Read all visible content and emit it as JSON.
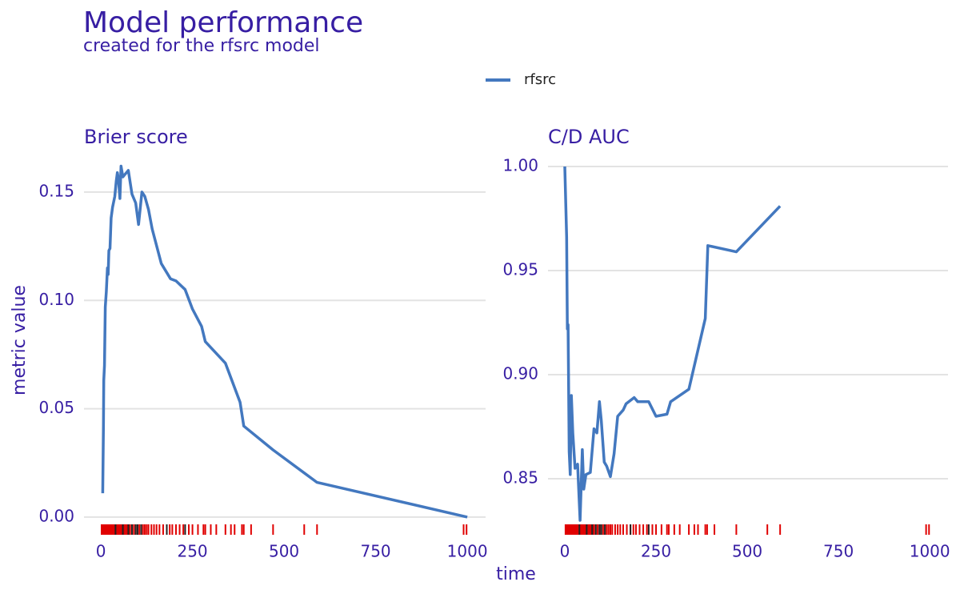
{
  "title": "Model performance",
  "subtitle": "created for the rfsrc model",
  "ylabel": "metric value",
  "xlabel": "time",
  "rug": {
    "events": [
      2,
      5,
      8,
      10,
      12,
      15,
      18,
      20,
      22,
      25,
      28,
      30,
      33,
      36,
      40,
      43,
      46,
      50,
      53,
      56,
      60,
      64,
      68,
      72,
      76,
      80,
      85,
      90,
      95,
      100,
      105,
      110,
      115,
      120,
      125,
      130,
      138,
      145,
      152,
      160,
      170,
      180,
      188,
      195,
      205,
      215,
      225,
      240,
      250,
      265,
      280,
      285,
      300,
      315,
      340,
      355,
      365,
      385,
      390,
      410,
      470,
      555,
      590,
      990,
      998
    ],
    "events_color": "#e00000",
    "censored": [
      40,
      60,
      75,
      85,
      95,
      100,
      110,
      180,
      230
    ],
    "censored_color": "#222222"
  },
  "chart_data": [
    {
      "type": "line",
      "title": "Brier score",
      "x": [
        5,
        7,
        8,
        10,
        12,
        15,
        18,
        20,
        22,
        25,
        28,
        32,
        38,
        42,
        45,
        48,
        52,
        55,
        60,
        65,
        75,
        85,
        95,
        103,
        112,
        120,
        130,
        140,
        165,
        190,
        205,
        230,
        250,
        275,
        285,
        340,
        380,
        390,
        470,
        590,
        1000
      ],
      "series": [
        {
          "name": "rfsrc",
          "color": "#4378bf",
          "values": [
            0.011,
            0.042,
            0.063,
            0.07,
            0.097,
            0.104,
            0.115,
            0.112,
            0.123,
            0.124,
            0.138,
            0.143,
            0.148,
            0.155,
            0.159,
            0.156,
            0.147,
            0.162,
            0.157,
            0.158,
            0.16,
            0.149,
            0.145,
            0.135,
            0.15,
            0.148,
            0.142,
            0.133,
            0.117,
            0.11,
            0.109,
            0.105,
            0.096,
            0.088,
            0.081,
            0.071,
            0.053,
            0.042,
            0.031,
            0.016,
            0.0
          ]
        }
      ],
      "xlim": [
        -46,
        1050
      ],
      "ylim": [
        -0.0089,
        0.1666
      ],
      "xticks": [
        0,
        250,
        500,
        750,
        1000
      ],
      "yticks": [
        {
          "value": 0,
          "label": "0.00"
        },
        0.05,
        {
          "value": 0.1,
          "label": "0.10"
        },
        0.15
      ],
      "grid": true
    },
    {
      "type": "line",
      "title": "C/D AUC",
      "x": [
        0,
        5,
        7,
        9,
        12,
        15,
        18,
        22,
        28,
        35,
        42,
        48,
        52,
        58,
        70,
        80,
        88,
        95,
        100,
        108,
        115,
        125,
        135,
        145,
        160,
        168,
        190,
        200,
        230,
        250,
        280,
        290,
        340,
        385,
        392,
        470,
        590
      ],
      "series": [
        {
          "name": "rfsrc",
          "color": "#4378bf",
          "values": [
            1.0,
            0.966,
            0.922,
            0.924,
            0.863,
            0.852,
            0.89,
            0.872,
            0.855,
            0.857,
            0.83,
            0.864,
            0.845,
            0.852,
            0.853,
            0.874,
            0.872,
            0.887,
            0.878,
            0.858,
            0.856,
            0.851,
            0.862,
            0.88,
            0.883,
            0.886,
            0.889,
            0.887,
            0.887,
            0.88,
            0.881,
            0.887,
            0.893,
            0.927,
            0.962,
            0.959,
            0.981
          ]
        }
      ],
      "xlim": [
        -46,
        1050
      ],
      "ylim": [
        0.8223,
        1.005
      ],
      "xticks": [
        0,
        250,
        500,
        750,
        1000
      ],
      "yticks": [
        0.85,
        {
          "value": 0.9,
          "label": "0.90"
        },
        0.95,
        {
          "value": 1,
          "label": "1.00"
        }
      ],
      "grid": true
    }
  ]
}
